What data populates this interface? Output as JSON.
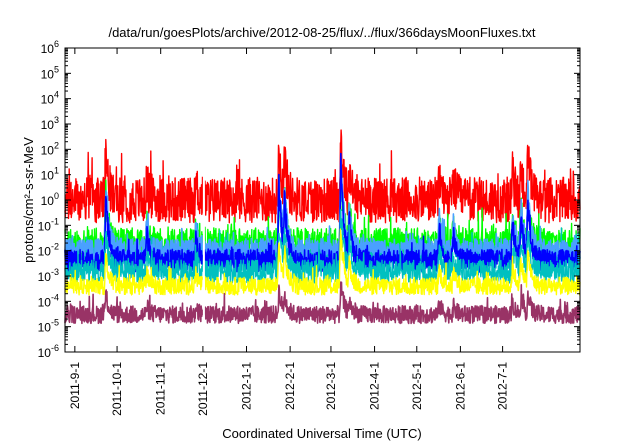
{
  "chart_data": {
    "type": "line",
    "title": "/data/run/goesPlots/archive/2012-08-25/flux/../flux/366daysMoonFluxes.txt",
    "xlabel": "Coordinated Universal Time (UTC)",
    "ylabel": "protons/cm²-s-sr-MeV",
    "yscale": "log",
    "xlim": [
      "2011-08-25",
      "2012-08-25"
    ],
    "ylim": [
      1e-06,
      1000000.0
    ],
    "grid": false,
    "legend": "none",
    "x_ticks": [
      {
        "date": "2011-09-01",
        "label": "2011-9-1"
      },
      {
        "date": "2011-10-01",
        "label": "2011-10-1"
      },
      {
        "date": "2011-11-01",
        "label": "2011-11-1"
      },
      {
        "date": "2011-12-01",
        "label": "2011-12-1"
      },
      {
        "date": "2012-01-01",
        "label": "2012-1-1"
      },
      {
        "date": "2012-02-01",
        "label": "2012-2-1"
      },
      {
        "date": "2012-03-01",
        "label": "2012-3-1"
      },
      {
        "date": "2012-04-01",
        "label": "2012-4-1"
      },
      {
        "date": "2012-05-01",
        "label": "2012-5-1"
      },
      {
        "date": "2012-06-01",
        "label": "2012-6-1"
      },
      {
        "date": "2012-07-01",
        "label": "2012-7-1"
      }
    ],
    "y_ticks": [
      {
        "exp": 6,
        "label": "10",
        "sup": "6"
      },
      {
        "exp": 5,
        "label": "10",
        "sup": "5"
      },
      {
        "exp": 4,
        "label": "10",
        "sup": "4"
      },
      {
        "exp": 3,
        "label": "10",
        "sup": "3"
      },
      {
        "exp": 2,
        "label": "10",
        "sup": "2"
      },
      {
        "exp": 1,
        "label": "10",
        "sup": "1"
      },
      {
        "exp": 0,
        "label": "10",
        "sup": "0"
      },
      {
        "exp": -1,
        "label": "10",
        "sup": "-1"
      },
      {
        "exp": -2,
        "label": "10",
        "sup": "-2"
      },
      {
        "exp": -3,
        "label": "10",
        "sup": "-3"
      },
      {
        "exp": -4,
        "label": "10",
        "sup": "-4"
      },
      {
        "exp": -5,
        "label": "10",
        "sup": "-5"
      },
      {
        "exp": -6,
        "label": "10",
        "sup": "-6"
      }
    ],
    "events": [
      {
        "date": "2011-09-23",
        "scale": 1.0
      },
      {
        "date": "2011-10-22",
        "scale": 0.4
      },
      {
        "date": "2011-11-26",
        "scale": 0.35
      },
      {
        "date": "2012-01-24",
        "scale": 1.2
      },
      {
        "date": "2012-01-28",
        "scale": 0.8
      },
      {
        "date": "2012-03-08",
        "scale": 1.5
      },
      {
        "date": "2012-03-14",
        "scale": 0.6
      },
      {
        "date": "2012-05-17",
        "scale": 0.5
      },
      {
        "date": "2012-05-27",
        "scale": 0.4
      },
      {
        "date": "2012-07-08",
        "scale": 0.6
      },
      {
        "date": "2012-07-14",
        "scale": 0.7
      },
      {
        "date": "2012-07-19",
        "scale": 0.9
      }
    ],
    "data_gap": [
      "2011-12-01",
      "2011-12-02"
    ],
    "series": [
      {
        "color": "#ff0000",
        "baseline": 1.0,
        "noise": 0.9,
        "peak_log": 1.8,
        "width": 1.4
      },
      {
        "color": "#00ff00",
        "baseline": 0.02,
        "noise": 0.6,
        "peak_log": 1.9,
        "width": 1.4
      },
      {
        "color": "#00c0c0",
        "baseline": 0.005,
        "noise": 0.5,
        "peak_log": 2.2,
        "width": 1.4
      },
      {
        "color": "#4aa0ff",
        "baseline": 0.012,
        "noise": 0.4,
        "peak_log": 2.4,
        "width": 1.6
      },
      {
        "color": "#0000ff",
        "baseline": 0.004,
        "noise": 0.45,
        "peak_log": 2.6,
        "width": 1.6
      },
      {
        "color": "#00c0c0",
        "baseline": 0.0015,
        "noise": 0.45,
        "peak_log": 1.6,
        "width": 1.4
      },
      {
        "color": "#ffff00",
        "baseline": 0.0004,
        "noise": 0.35,
        "peak_log": 1.4,
        "width": 1.4
      },
      {
        "color": "#993366",
        "baseline": 3e-05,
        "noise": 0.35,
        "peak_log": 0.8,
        "width": 1.6
      }
    ]
  }
}
